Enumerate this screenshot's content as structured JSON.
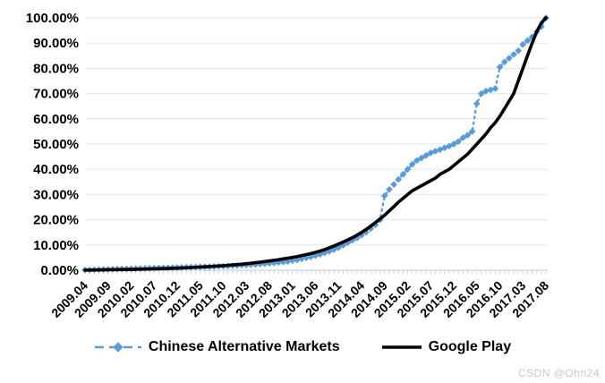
{
  "watermark": "CSDN @Ohh24",
  "chart_data": {
    "type": "line",
    "title": "",
    "xlabel": "",
    "ylabel": "",
    "ylim": [
      0,
      100
    ],
    "grid": "horizontal",
    "legend_position": "bottom",
    "y_tick_labels": [
      "100.00%",
      "90.00%",
      "80.00%",
      "70.00%",
      "60.00%",
      "50.00%",
      "40.00%",
      "30.00%",
      "20.00%",
      "10.00%",
      "0.00%"
    ],
    "x_tick_labels": [
      "2009.04",
      "2009.09",
      "2010.02",
      "2010.07",
      "2010.12",
      "2011.05",
      "2011.10",
      "2012.03",
      "2012.08",
      "2013.01",
      "2013.06",
      "2013.11",
      "2014.04",
      "2014.09",
      "2015.02",
      "2015.07",
      "2015.12",
      "2016.05",
      "2016.10",
      "2017.03",
      "2017.08"
    ],
    "x_monthly": [
      "2009.04",
      "2009.05",
      "2009.06",
      "2009.07",
      "2009.08",
      "2009.09",
      "2009.10",
      "2009.11",
      "2009.12",
      "2010.01",
      "2010.02",
      "2010.03",
      "2010.04",
      "2010.05",
      "2010.06",
      "2010.07",
      "2010.08",
      "2010.09",
      "2010.10",
      "2010.11",
      "2010.12",
      "2011.01",
      "2011.02",
      "2011.03",
      "2011.04",
      "2011.05",
      "2011.06",
      "2011.07",
      "2011.08",
      "2011.09",
      "2011.10",
      "2011.11",
      "2011.12",
      "2012.01",
      "2012.02",
      "2012.03",
      "2012.04",
      "2012.05",
      "2012.06",
      "2012.07",
      "2012.08",
      "2012.09",
      "2012.10",
      "2012.11",
      "2012.12",
      "2013.01",
      "2013.02",
      "2013.03",
      "2013.04",
      "2013.05",
      "2013.06",
      "2013.07",
      "2013.08",
      "2013.09",
      "2013.10",
      "2013.11",
      "2013.12",
      "2014.01",
      "2014.02",
      "2014.03",
      "2014.04",
      "2014.05",
      "2014.06",
      "2014.07",
      "2014.08",
      "2014.09",
      "2014.10",
      "2014.11",
      "2014.12",
      "2015.01",
      "2015.02",
      "2015.03",
      "2015.04",
      "2015.05",
      "2015.06",
      "2015.07",
      "2015.08",
      "2015.09",
      "2015.10",
      "2015.11",
      "2015.12",
      "2016.01",
      "2016.02",
      "2016.03",
      "2016.04",
      "2016.05",
      "2016.06",
      "2016.07",
      "2016.08",
      "2016.09",
      "2016.10",
      "2016.11",
      "2016.12",
      "2017.01",
      "2017.02",
      "2017.03",
      "2017.04",
      "2017.05",
      "2017.06",
      "2017.07",
      "2017.08"
    ],
    "series": [
      {
        "name": "Chinese Alternative Markets",
        "color": "#5B9BD5",
        "style": "dashed-diamond",
        "values": [
          0.1,
          0.15,
          0.2,
          0.25,
          0.3,
          0.35,
          0.4,
          0.45,
          0.5,
          0.55,
          0.6,
          0.65,
          0.7,
          0.75,
          0.8,
          0.85,
          0.9,
          0.95,
          1.0,
          1.05,
          1.1,
          1.15,
          1.2,
          1.25,
          1.3,
          1.35,
          1.4,
          1.45,
          1.5,
          1.55,
          1.6,
          1.7,
          1.8,
          1.9,
          2.0,
          2.1,
          2.2,
          2.3,
          2.45,
          2.6,
          2.75,
          2.9,
          3.1,
          3.3,
          3.5,
          3.8,
          4.1,
          4.5,
          4.9,
          5.3,
          5.8,
          6.3,
          6.9,
          7.5,
          8.2,
          9.0,
          9.9,
          10.9,
          11.8,
          12.8,
          13.9,
          15.1,
          16.5,
          18.0,
          20.0,
          29.5,
          32.0,
          34.0,
          36.0,
          38.0,
          40.0,
          42.0,
          43.5,
          44.5,
          45.5,
          46.5,
          47.2,
          47.8,
          48.5,
          49.2,
          50.0,
          51.0,
          52.5,
          53.5,
          55.0,
          66.0,
          70.0,
          71.0,
          71.5,
          72.0,
          80.5,
          82.5,
          84.0,
          85.5,
          87.0,
          89.5,
          91.0,
          92.5,
          94.5,
          96.5,
          100.0
        ]
      },
      {
        "name": "Google Play",
        "color": "#000000",
        "style": "solid",
        "values": [
          0.05,
          0.08,
          0.1,
          0.13,
          0.16,
          0.19,
          0.22,
          0.25,
          0.28,
          0.31,
          0.34,
          0.38,
          0.42,
          0.46,
          0.5,
          0.55,
          0.6,
          0.65,
          0.7,
          0.76,
          0.82,
          0.9,
          0.98,
          1.06,
          1.15,
          1.25,
          1.35,
          1.45,
          1.56,
          1.68,
          1.8,
          1.95,
          2.1,
          2.25,
          2.4,
          2.6,
          2.8,
          3.0,
          3.2,
          3.45,
          3.7,
          3.95,
          4.2,
          4.5,
          4.8,
          5.1,
          5.4,
          5.8,
          6.2,
          6.6,
          7.1,
          7.6,
          8.2,
          8.9,
          9.6,
          10.4,
          11.2,
          12.0,
          12.9,
          13.9,
          15.0,
          16.2,
          17.5,
          18.9,
          20.3,
          21.8,
          23.5,
          25.2,
          27.0,
          28.5,
          30.0,
          31.5,
          32.5,
          33.5,
          34.5,
          35.5,
          36.5,
          38.0,
          39.0,
          40.0,
          41.5,
          43.0,
          44.5,
          46.0,
          48.0,
          50.0,
          52.0,
          54.0,
          56.5,
          58.5,
          61.0,
          64.0,
          67.0,
          70.0,
          75.0,
          80.0,
          85.0,
          90.0,
          94.5,
          98.0,
          100.0
        ]
      }
    ],
    "colors": {
      "gridline": "#dfe7f2",
      "axis": "#c9d3e2",
      "blue_series": "#5B9BD5",
      "black_series": "#000000"
    }
  }
}
